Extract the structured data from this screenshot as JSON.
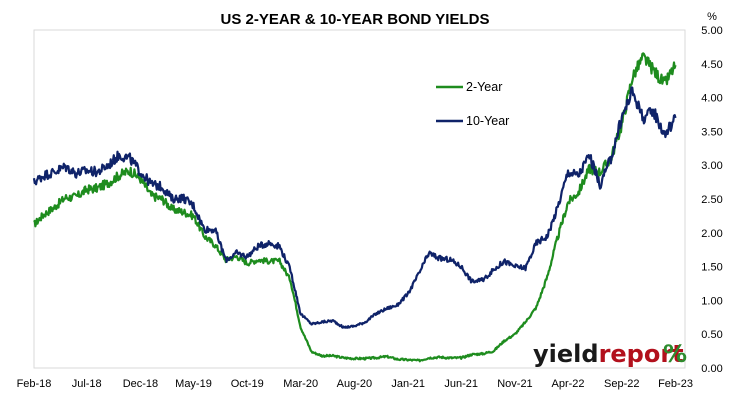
{
  "chart_data": {
    "type": "line",
    "title": "US 2-YEAR & 10-YEAR BOND YIELDS",
    "ylabel": "%",
    "ylim": [
      0,
      5
    ],
    "yticks": [
      "0.00",
      "0.50",
      "1.00",
      "1.50",
      "2.00",
      "2.50",
      "3.00",
      "3.50",
      "4.00",
      "4.50",
      "5.00"
    ],
    "xlim": [
      "2018-02-01",
      "2023-02-28"
    ],
    "xticks": [
      {
        "label": "Feb-18",
        "date": "2018-02-01"
      },
      {
        "label": "Jul-18",
        "date": "2018-07-01"
      },
      {
        "label": "Dec-18",
        "date": "2018-12-01"
      },
      {
        "label": "May-19",
        "date": "2019-05-01"
      },
      {
        "label": "Oct-19",
        "date": "2019-10-01"
      },
      {
        "label": "Mar-20",
        "date": "2020-03-01"
      },
      {
        "label": "Aug-20",
        "date": "2020-08-01"
      },
      {
        "label": "Jan-21",
        "date": "2021-01-01"
      },
      {
        "label": "Jun-21",
        "date": "2021-06-01"
      },
      {
        "label": "Nov-21",
        "date": "2021-11-01"
      },
      {
        "label": "Apr-22",
        "date": "2022-04-01"
      },
      {
        "label": "Sep-22",
        "date": "2022-09-01"
      },
      {
        "label": "Feb-23",
        "date": "2023-02-01"
      }
    ],
    "grid": false,
    "legend_position": "top-right",
    "series": [
      {
        "name": "2-Year",
        "color": "#1e8c1e",
        "points": [
          [
            "2018-02-01",
            2.12
          ],
          [
            "2018-03-01",
            2.27
          ],
          [
            "2018-04-01",
            2.38
          ],
          [
            "2018-05-01",
            2.52
          ],
          [
            "2018-06-01",
            2.53
          ],
          [
            "2018-07-01",
            2.64
          ],
          [
            "2018-08-01",
            2.66
          ],
          [
            "2018-09-01",
            2.74
          ],
          [
            "2018-10-01",
            2.85
          ],
          [
            "2018-11-01",
            2.92
          ],
          [
            "2018-12-01",
            2.8
          ],
          [
            "2019-01-01",
            2.55
          ],
          [
            "2019-02-01",
            2.5
          ],
          [
            "2019-03-01",
            2.35
          ],
          [
            "2019-04-01",
            2.31
          ],
          [
            "2019-05-01",
            2.25
          ],
          [
            "2019-06-01",
            1.95
          ],
          [
            "2019-07-01",
            1.82
          ],
          [
            "2019-08-01",
            1.6
          ],
          [
            "2019-09-01",
            1.65
          ],
          [
            "2019-10-01",
            1.55
          ],
          [
            "2019-11-01",
            1.6
          ],
          [
            "2019-12-01",
            1.58
          ],
          [
            "2020-01-01",
            1.58
          ],
          [
            "2020-02-01",
            1.3
          ],
          [
            "2020-03-01",
            0.6
          ],
          [
            "2020-04-01",
            0.24
          ],
          [
            "2020-05-01",
            0.18
          ],
          [
            "2020-06-01",
            0.18
          ],
          [
            "2020-07-01",
            0.15
          ],
          [
            "2020-08-01",
            0.14
          ],
          [
            "2020-09-01",
            0.14
          ],
          [
            "2020-10-01",
            0.15
          ],
          [
            "2020-11-01",
            0.17
          ],
          [
            "2020-12-01",
            0.13
          ],
          [
            "2021-01-01",
            0.12
          ],
          [
            "2021-02-01",
            0.11
          ],
          [
            "2021-03-01",
            0.15
          ],
          [
            "2021-04-01",
            0.16
          ],
          [
            "2021-05-01",
            0.15
          ],
          [
            "2021-06-01",
            0.15
          ],
          [
            "2021-07-01",
            0.2
          ],
          [
            "2021-08-01",
            0.21
          ],
          [
            "2021-09-01",
            0.25
          ],
          [
            "2021-10-01",
            0.4
          ],
          [
            "2021-11-01",
            0.5
          ],
          [
            "2021-12-01",
            0.68
          ],
          [
            "2022-01-01",
            0.9
          ],
          [
            "2022-02-01",
            1.35
          ],
          [
            "2022-03-01",
            1.9
          ],
          [
            "2022-04-01",
            2.45
          ],
          [
            "2022-05-01",
            2.6
          ],
          [
            "2022-06-01",
            2.95
          ],
          [
            "2022-07-01",
            2.9
          ],
          [
            "2022-08-01",
            3.1
          ],
          [
            "2022-09-01",
            3.6
          ],
          [
            "2022-10-01",
            4.3
          ],
          [
            "2022-11-01",
            4.6
          ],
          [
            "2022-12-01",
            4.4
          ],
          [
            "2023-01-01",
            4.2
          ],
          [
            "2023-02-01",
            4.48
          ]
        ]
      },
      {
        "name": "10-Year",
        "color": "#0f2369",
        "points": [
          [
            "2018-02-01",
            2.75
          ],
          [
            "2018-03-01",
            2.85
          ],
          [
            "2018-04-01",
            2.9
          ],
          [
            "2018-05-01",
            2.98
          ],
          [
            "2018-06-01",
            2.88
          ],
          [
            "2018-07-01",
            2.92
          ],
          [
            "2018-08-01",
            2.9
          ],
          [
            "2018-09-01",
            3.0
          ],
          [
            "2018-10-01",
            3.15
          ],
          [
            "2018-11-01",
            3.1
          ],
          [
            "2018-12-01",
            2.9
          ],
          [
            "2019-01-01",
            2.72
          ],
          [
            "2019-02-01",
            2.68
          ],
          [
            "2019-03-01",
            2.5
          ],
          [
            "2019-04-01",
            2.52
          ],
          [
            "2019-05-01",
            2.4
          ],
          [
            "2019-06-01",
            2.05
          ],
          [
            "2019-07-01",
            2.05
          ],
          [
            "2019-08-01",
            1.6
          ],
          [
            "2019-09-01",
            1.7
          ],
          [
            "2019-10-01",
            1.65
          ],
          [
            "2019-11-01",
            1.8
          ],
          [
            "2019-12-01",
            1.85
          ],
          [
            "2020-01-01",
            1.8
          ],
          [
            "2020-02-01",
            1.45
          ],
          [
            "2020-03-01",
            0.8
          ],
          [
            "2020-04-01",
            0.65
          ],
          [
            "2020-05-01",
            0.68
          ],
          [
            "2020-06-01",
            0.7
          ],
          [
            "2020-07-01",
            0.6
          ],
          [
            "2020-08-01",
            0.62
          ],
          [
            "2020-09-01",
            0.68
          ],
          [
            "2020-10-01",
            0.8
          ],
          [
            "2020-11-01",
            0.88
          ],
          [
            "2020-12-01",
            0.93
          ],
          [
            "2021-01-01",
            1.1
          ],
          [
            "2021-02-01",
            1.4
          ],
          [
            "2021-03-01",
            1.7
          ],
          [
            "2021-04-01",
            1.62
          ],
          [
            "2021-05-01",
            1.6
          ],
          [
            "2021-06-01",
            1.5
          ],
          [
            "2021-07-01",
            1.28
          ],
          [
            "2021-08-01",
            1.3
          ],
          [
            "2021-09-01",
            1.45
          ],
          [
            "2021-10-01",
            1.58
          ],
          [
            "2021-11-01",
            1.5
          ],
          [
            "2021-12-01",
            1.48
          ],
          [
            "2022-01-01",
            1.85
          ],
          [
            "2022-02-01",
            1.95
          ],
          [
            "2022-03-01",
            2.35
          ],
          [
            "2022-04-01",
            2.9
          ],
          [
            "2022-05-01",
            2.85
          ],
          [
            "2022-06-01",
            3.15
          ],
          [
            "2022-07-01",
            2.7
          ],
          [
            "2022-08-01",
            3.1
          ],
          [
            "2022-09-01",
            3.7
          ],
          [
            "2022-10-01",
            4.1
          ],
          [
            "2022-11-01",
            3.7
          ],
          [
            "2022-12-01",
            3.8
          ],
          [
            "2023-01-01",
            3.45
          ],
          [
            "2023-02-01",
            3.7
          ]
        ]
      }
    ]
  },
  "brand": {
    "part1": "yield",
    "part2": "report",
    "symbol": "%",
    "color_dark": "#1a1a1a",
    "color_red": "#b2101c",
    "color_green": "#2e8b2e"
  }
}
